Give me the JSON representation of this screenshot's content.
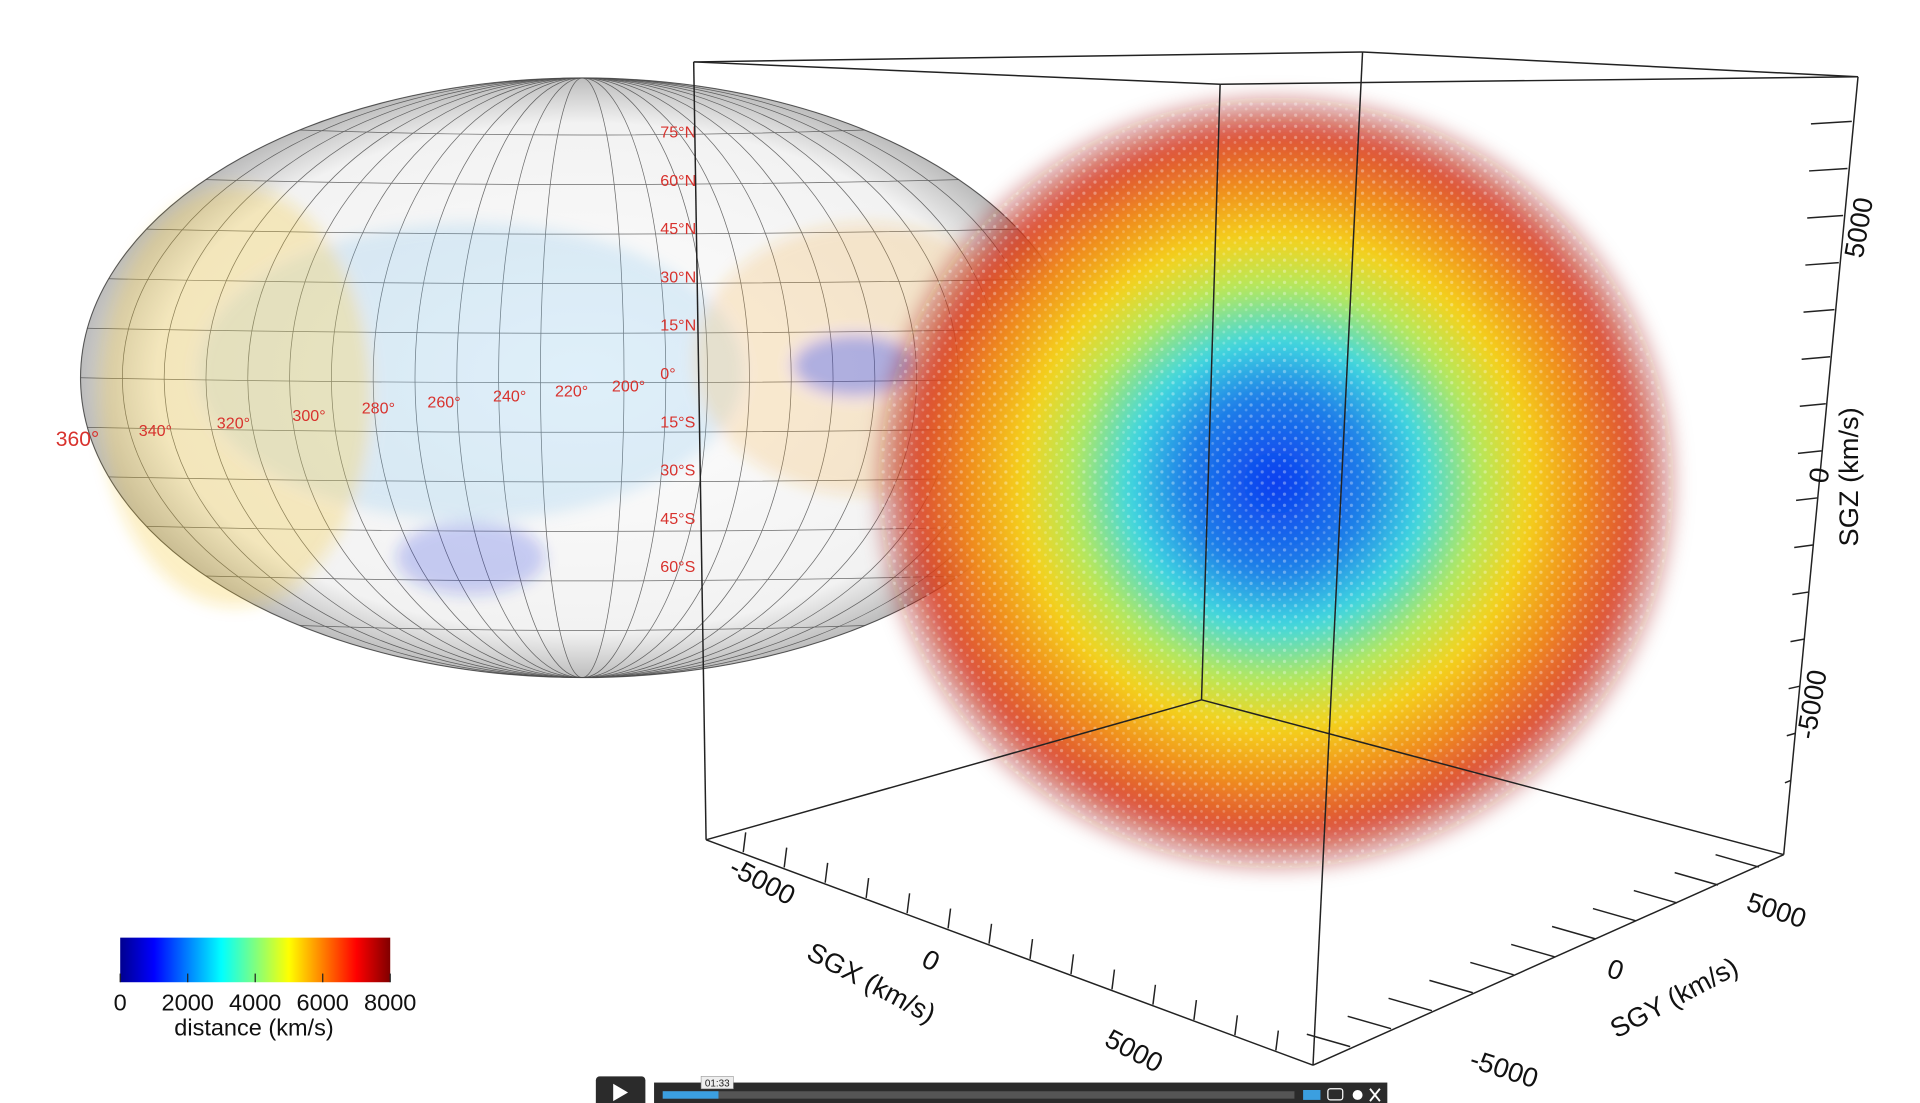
{
  "sky_map": {
    "lat_labels": [
      "75°N",
      "60°N",
      "45°N",
      "30°N",
      "15°N",
      "0°",
      "15°S",
      "30°S",
      "45°S",
      "60°S"
    ],
    "lon_labels": [
      "360°",
      "340°",
      "320°",
      "300°",
      "280°",
      "260°",
      "240°",
      "220°",
      "200°"
    ]
  },
  "cube": {
    "sgx": {
      "label": "SGX (km/s)",
      "ticks": [
        -5000,
        0,
        5000
      ]
    },
    "sgy": {
      "label": "SGY (km/s)",
      "ticks": [
        -5000,
        0,
        5000
      ]
    },
    "sgz": {
      "label": "SGZ (km/s)",
      "ticks": [
        -5000,
        0,
        5000
      ]
    }
  },
  "colorbar": {
    "ticks": [
      0,
      2000,
      4000,
      6000,
      8000
    ],
    "label": "distance (km/s)"
  },
  "video": {
    "time": "01:33"
  }
}
